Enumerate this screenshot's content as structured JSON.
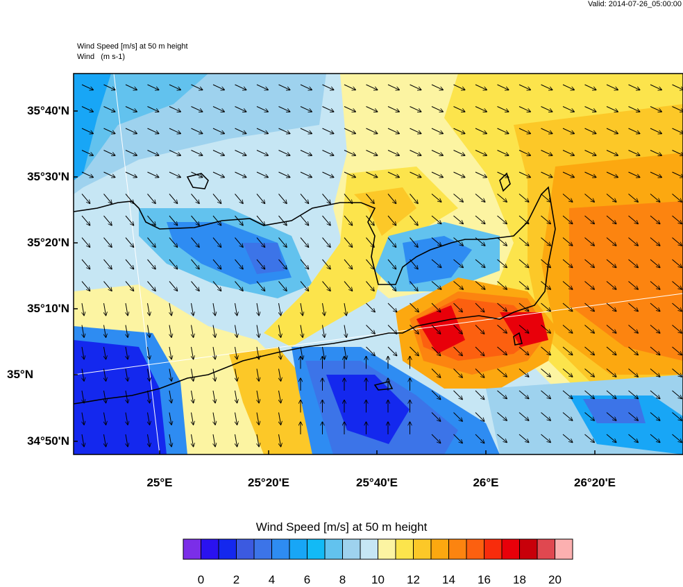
{
  "header": {
    "valid_time": "Valid: 2014-07-26_05:00:00",
    "field_title": "Wind Speed [m/s] at 50 m height",
    "vector_title": "Wind   (m s-1)"
  },
  "axes": {
    "lat_labels": [
      "35°40'N",
      "35°30'N",
      "35°20'N",
      "35°10'N",
      "35°N",
      "34°50'N"
    ],
    "lon_labels": [
      "25°E",
      "25°20'E",
      "25°40'E",
      "26°E",
      "26°20'E"
    ]
  },
  "colorbar": {
    "title": "Wind Speed [m/s] at 50 m height",
    "labels": [
      "0",
      "2",
      "4",
      "6",
      "8",
      "10",
      "12",
      "14",
      "16",
      "18",
      "20"
    ],
    "colors": [
      "#7b2ee8",
      "#2a12f0",
      "#1428ee",
      "#3c5ae0",
      "#3c74e8",
      "#2e8cf2",
      "#18a6f6",
      "#12baf6",
      "#62c2ee",
      "#9ed2ee",
      "#c6e6f4",
      "#fcf4a2",
      "#fce44c",
      "#fcc828",
      "#fca810",
      "#fc8410",
      "#fc6010",
      "#f82c0c",
      "#e8000a",
      "#c8000a",
      "#e04850",
      "#fcb0b0"
    ]
  },
  "map": {
    "colors": {
      "lightblue": "#c6e6f4",
      "paleblue": "#9ed2ee",
      "blue": "#62c2ee",
      "cyan": "#18a6f6",
      "mid": "#3c74e8",
      "deep": "#1428ee",
      "paleyellow": "#fcf4a2",
      "yellow": "#fce44c",
      "gold": "#fcc828",
      "orange": "#fca810",
      "darkorange": "#fc8410",
      "red": "#fc6010",
      "crimson": "#e8000a"
    }
  }
}
